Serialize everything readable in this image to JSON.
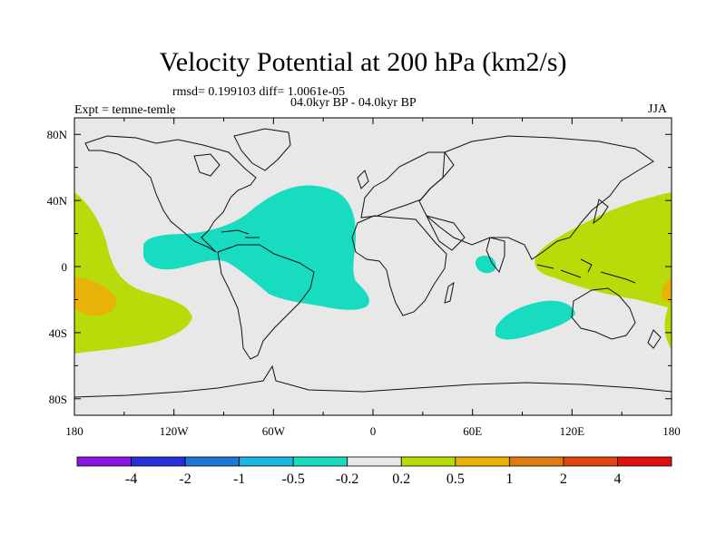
{
  "title": "Velocity Potential at 200 hPa (km2/s)",
  "stats": "rmsd= 0.199103 diff= 1.0061e-05",
  "period": "04.0kyr BP - 04.0kyr BP",
  "experiment": "Expt = temne-temle",
  "season": "JJA",
  "chart_data": {
    "type": "heatmap",
    "title": "Velocity Potential at 200 hPa (km2/s)",
    "xlabel": "",
    "ylabel": "",
    "x_range": [
      -180,
      180
    ],
    "y_range": [
      -90,
      90
    ],
    "x_ticks": [
      "180",
      "120W",
      "60W",
      "0",
      "60E",
      "120E",
      "180"
    ],
    "y_ticks": [
      "80N",
      "40N",
      "0",
      "40S",
      "80S"
    ],
    "colorbar": {
      "labels": [
        "-4",
        "-2",
        "-1",
        "-0.5",
        "-0.2",
        "0.2",
        "0.5",
        "1",
        "2",
        "4"
      ],
      "colors": [
        "#8a14e0",
        "#2530d8",
        "#1a78d8",
        "#19b8e0",
        "#17dcc0",
        "#e8e8e8",
        "#b8dc0a",
        "#e8b208",
        "#e27a12",
        "#e04410",
        "#e01010"
      ]
    },
    "anomalies": [
      {
        "name": "Tropical Atlantic / South America",
        "level": "-0.5 to -0.2"
      },
      {
        "name": "Western Indian Ocean",
        "level": "-0.5 to -0.2"
      },
      {
        "name": "South Indian Ocean",
        "level": "-0.5 to -0.2"
      },
      {
        "name": "Western Pacific",
        "level": "0.2 to 0.5"
      },
      {
        "name": "Eastern Pacific",
        "level": "0.2 to 0.5"
      },
      {
        "name": "Eastern Pacific core",
        "level": "0.5 to 1"
      }
    ]
  }
}
